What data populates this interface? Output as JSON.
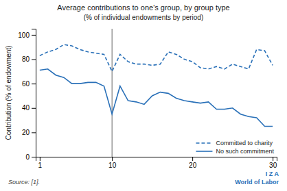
{
  "chart_data": {
    "type": "line",
    "title": "Average contributions to one's group, by group type",
    "subtitle": "(% of individual endowments by period)",
    "ylabel": "Contribution (% of endowment)",
    "source": "Source: [1].",
    "annotations": [
      "I Z A",
      "World of Labor"
    ],
    "x": [
      1,
      2,
      3,
      4,
      5,
      6,
      7,
      8,
      9,
      10,
      11,
      12,
      13,
      14,
      15,
      16,
      17,
      18,
      19,
      20,
      21,
      22,
      23,
      24,
      25,
      26,
      27,
      28,
      29,
      30
    ],
    "series": [
      {
        "name": "Committed to charity",
        "color": "#2970b8",
        "line_style": "dashed",
        "values": [
          83,
          86,
          88,
          92,
          91,
          88,
          86,
          85,
          84,
          70,
          84,
          78,
          76,
          76,
          75,
          76,
          86,
          84,
          80,
          78,
          73,
          72,
          74,
          72,
          76,
          74,
          72,
          88,
          87,
          75
        ]
      },
      {
        "name": "No such commitment",
        "color": "#2970b8",
        "line_style": "solid",
        "values": [
          71,
          72,
          67,
          65,
          60,
          60,
          61,
          61,
          58,
          35,
          58,
          46,
          45,
          43,
          50,
          53,
          52,
          48,
          46,
          45,
          44,
          45,
          39,
          39,
          40,
          35,
          33,
          32,
          25,
          25
        ]
      }
    ],
    "reference_lines": [
      {
        "x": 10,
        "color": "#666666"
      }
    ],
    "xlim": [
      0.5,
      30.5
    ],
    "ylim": [
      0,
      105
    ],
    "xticks": [
      1,
      10,
      20,
      30
    ],
    "yticks": [
      0,
      20,
      40,
      60,
      80,
      100
    ],
    "grid": false,
    "legend": "lower right"
  }
}
